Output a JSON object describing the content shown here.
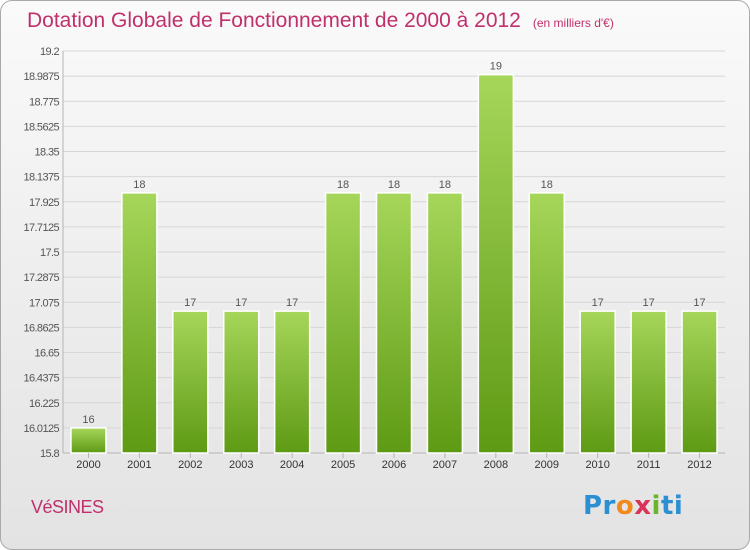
{
  "chart_data": {
    "type": "bar",
    "title": "Dotation Globale de Fonctionnement de 2000 à 2012",
    "subtitle": "(en milliers d'€)",
    "categories": [
      "2000",
      "2001",
      "2002",
      "2003",
      "2004",
      "2005",
      "2006",
      "2007",
      "2008",
      "2009",
      "2010",
      "2011",
      "2012"
    ],
    "values": [
      16,
      18,
      17,
      17,
      17,
      18,
      18,
      18,
      19,
      18,
      17,
      17,
      17
    ],
    "data_labels": [
      "16",
      "18",
      "17",
      "17",
      "17",
      "18",
      "18",
      "18",
      "19",
      "18",
      "17",
      "17",
      "17"
    ],
    "bar_tops": [
      16.0125,
      18.0,
      17.0,
      17.0,
      17.0,
      18.0,
      18.0,
      18.0,
      19.0,
      18.0,
      17.0,
      17.0,
      17.0
    ],
    "ylim": [
      15.8,
      19.2
    ],
    "yticks": [
      "19.2",
      "18.9875",
      "18.775",
      "18.5625",
      "18.35",
      "18.1375",
      "17.925",
      "17.7125",
      "17.5",
      "17.2875",
      "17.075",
      "16.8625",
      "16.65",
      "16.4375",
      "16.225",
      "16.0125",
      "15.8"
    ],
    "xlabel": "",
    "ylabel": "",
    "grid": true,
    "bar_color": "#7cbb2c"
  },
  "footer": {
    "commune": "VéSINES",
    "logo": [
      "Pr",
      "o",
      "x",
      "i",
      "ti"
    ]
  }
}
